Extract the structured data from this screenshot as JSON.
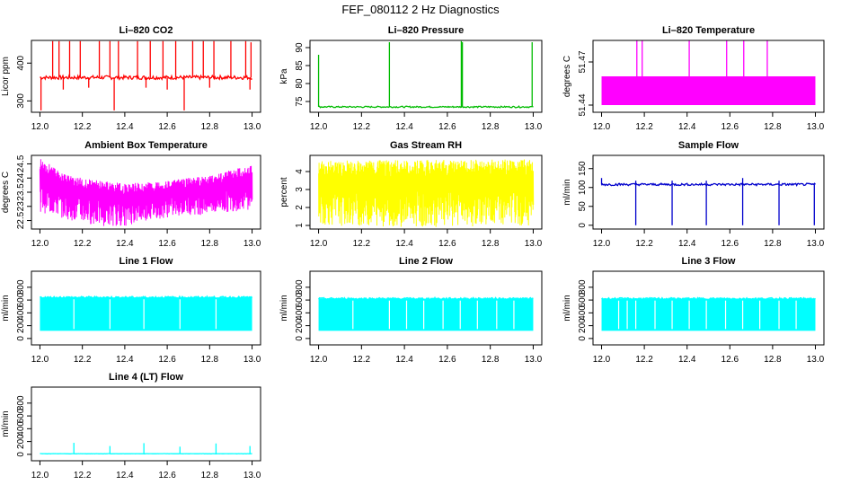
{
  "figure": {
    "title": "FEF_080112  2 Hz Diagnostics"
  },
  "chart_data": [
    {
      "type": "line",
      "title": "Li–820 CO2",
      "ylabel": "Licor ppm",
      "color": "#ff0000",
      "xlim": [
        12.0,
        13.0
      ],
      "xticks": [
        12.0,
        12.2,
        12.4,
        12.6,
        12.8,
        13.0
      ],
      "xtick_labels": [
        "12.0",
        "12.2",
        "12.4",
        "12.6",
        "12.8",
        "13.0"
      ],
      "ylim": [
        270,
        460
      ],
      "yticks": [
        300,
        400
      ],
      "ytick_labels": [
        "300",
        "400"
      ],
      "baseline": 362,
      "noise": 5,
      "spikes_up": [
        {
          "x": 12.06,
          "y": 458
        },
        {
          "x": 12.09,
          "y": 458
        },
        {
          "x": 12.14,
          "y": 458
        },
        {
          "x": 12.19,
          "y": 458
        },
        {
          "x": 12.28,
          "y": 458
        },
        {
          "x": 12.33,
          "y": 458
        },
        {
          "x": 12.37,
          "y": 458
        },
        {
          "x": 12.46,
          "y": 458
        },
        {
          "x": 12.52,
          "y": 458
        },
        {
          "x": 12.58,
          "y": 458
        },
        {
          "x": 12.64,
          "y": 458
        },
        {
          "x": 12.72,
          "y": 458
        },
        {
          "x": 12.77,
          "y": 458
        },
        {
          "x": 12.82,
          "y": 458
        },
        {
          "x": 12.9,
          "y": 458
        },
        {
          "x": 12.97,
          "y": 458
        },
        {
          "x": 12.995,
          "y": 455
        }
      ],
      "spikes_down": [
        {
          "x": 12.005,
          "y": 275
        },
        {
          "x": 12.35,
          "y": 275
        },
        {
          "x": 12.68,
          "y": 275
        },
        {
          "x": 12.11,
          "y": 330
        },
        {
          "x": 12.23,
          "y": 335
        },
        {
          "x": 12.5,
          "y": 335
        },
        {
          "x": 12.6,
          "y": 330
        },
        {
          "x": 12.8,
          "y": 335
        },
        {
          "x": 12.99,
          "y": 330
        }
      ]
    },
    {
      "type": "line",
      "title": "Li–820 Pressure",
      "ylabel": "kPa",
      "color": "#00bb00",
      "xlim": [
        12.0,
        13.0
      ],
      "xticks": [
        12.0,
        12.2,
        12.4,
        12.6,
        12.8,
        13.0
      ],
      "xtick_labels": [
        "12.0",
        "12.2",
        "12.4",
        "12.6",
        "12.8",
        "13.0"
      ],
      "ylim": [
        72,
        92
      ],
      "yticks": [
        75,
        80,
        85,
        90
      ],
      "ytick_labels": [
        "75",
        "80",
        "85",
        "90"
      ],
      "baseline": 73.5,
      "noise": 0.2,
      "spikes_up": [
        {
          "x": 12.0,
          "y": 88
        },
        {
          "x": 12.33,
          "y": 91.5
        },
        {
          "x": 12.665,
          "y": 91.8
        },
        {
          "x": 12.67,
          "y": 91.5
        },
        {
          "x": 12.995,
          "y": 91.5
        }
      ],
      "spikes_down": []
    },
    {
      "type": "line",
      "title": "Li–820 Temperature",
      "ylabel": "degrees C",
      "color": "#ff00ff",
      "xlim": [
        12.0,
        13.0
      ],
      "xticks": [
        12.0,
        12.2,
        12.4,
        12.6,
        12.8,
        13.0
      ],
      "xtick_labels": [
        "12.0",
        "12.2",
        "12.4",
        "12.6",
        "12.8",
        "13.0"
      ],
      "ylim": [
        51.435,
        51.485
      ],
      "yticks": [
        51.44,
        51.47
      ],
      "ytick_labels": [
        "51.44",
        "51.47"
      ],
      "band": [
        51.44,
        51.46
      ],
      "spikes_up": [
        {
          "x": 12.165,
          "y": 51.485
        },
        {
          "x": 12.19,
          "y": 51.485
        },
        {
          "x": 12.41,
          "y": 51.485
        },
        {
          "x": 12.585,
          "y": 51.485
        },
        {
          "x": 12.665,
          "y": 51.485
        },
        {
          "x": 12.775,
          "y": 51.485
        }
      ],
      "spikes_down": []
    },
    {
      "type": "line",
      "title": "Ambient Box Temperature",
      "ylabel": "degrees C",
      "color": "#ff00ff",
      "xlim": [
        12.0,
        13.0
      ],
      "xticks": [
        12.0,
        12.2,
        12.4,
        12.6,
        12.8,
        13.0
      ],
      "xtick_labels": [
        "12.0",
        "12.2",
        "12.4",
        "12.6",
        "12.8",
        "13.0"
      ],
      "ylim": [
        22.2,
        24.8
      ],
      "yticks": [
        22.5,
        23.0,
        23.5,
        24.0,
        24.5
      ],
      "ytick_labels": [
        "22.5",
        "23",
        "23.5",
        "24",
        "24.5"
      ],
      "envelope_top": [
        [
          12.0,
          24.75
        ],
        [
          12.1,
          24.2
        ],
        [
          12.2,
          24.0
        ],
        [
          12.3,
          23.9
        ],
        [
          12.4,
          23.8
        ],
        [
          12.5,
          23.85
        ],
        [
          12.6,
          23.9
        ],
        [
          12.7,
          24.0
        ],
        [
          12.8,
          24.1
        ],
        [
          12.9,
          24.3
        ],
        [
          13.0,
          24.45
        ]
      ],
      "envelope_bottom": [
        [
          12.0,
          22.8
        ],
        [
          12.1,
          22.6
        ],
        [
          12.2,
          22.4
        ],
        [
          12.3,
          22.3
        ],
        [
          12.4,
          22.3
        ],
        [
          12.5,
          22.5
        ],
        [
          12.6,
          22.6
        ],
        [
          12.7,
          22.7
        ],
        [
          12.8,
          22.7
        ],
        [
          12.9,
          22.8
        ],
        [
          13.0,
          22.9
        ]
      ]
    },
    {
      "type": "line",
      "title": "Gas Stream RH",
      "ylabel": "percent",
      "color": "#ffff00",
      "xlim": [
        12.0,
        13.0
      ],
      "xticks": [
        12.0,
        12.2,
        12.4,
        12.6,
        12.8,
        13.0
      ],
      "xtick_labels": [
        "12.0",
        "12.2",
        "12.4",
        "12.6",
        "12.8",
        "13.0"
      ],
      "ylim": [
        0.8,
        4.9
      ],
      "yticks": [
        1,
        2,
        3,
        4
      ],
      "ytick_labels": [
        "1",
        "2",
        "3",
        "4"
      ],
      "envelope_top": [
        [
          12.0,
          4.6
        ],
        [
          12.5,
          4.65
        ],
        [
          13.0,
          4.7
        ]
      ],
      "envelope_bottom": [
        [
          12.0,
          1.0
        ],
        [
          12.5,
          0.9
        ],
        [
          13.0,
          1.0
        ]
      ]
    },
    {
      "type": "line",
      "title": "Sample Flow",
      "ylabel": "ml/min",
      "color": "#0000cc",
      "xlim": [
        12.0,
        13.0
      ],
      "xticks": [
        12.0,
        12.2,
        12.4,
        12.6,
        12.8,
        13.0
      ],
      "xtick_labels": [
        "12.0",
        "12.2",
        "12.4",
        "12.6",
        "12.8",
        "13.0"
      ],
      "ylim": [
        -10,
        185
      ],
      "yticks": [
        0,
        50,
        100,
        150
      ],
      "ytick_labels": [
        "0",
        "50",
        "100",
        "150"
      ],
      "baseline": 108,
      "noise": 3,
      "spikes_up": [
        {
          "x": 12.0,
          "y": 125
        },
        {
          "x": 12.16,
          "y": 118
        },
        {
          "x": 12.33,
          "y": 118
        },
        {
          "x": 12.49,
          "y": 118
        },
        {
          "x": 12.66,
          "y": 125
        },
        {
          "x": 12.83,
          "y": 118
        }
      ],
      "spikes_down": [
        {
          "x": 12.16,
          "y": 0
        },
        {
          "x": 12.33,
          "y": 0
        },
        {
          "x": 12.49,
          "y": 0
        },
        {
          "x": 12.66,
          "y": 0
        },
        {
          "x": 12.83,
          "y": 0
        },
        {
          "x": 12.995,
          "y": 0
        }
      ]
    },
    {
      "type": "line",
      "title": "Line 1 Flow",
      "ylabel": "ml/min",
      "color": "#00ffff",
      "xlim": [
        12.0,
        13.0
      ],
      "xticks": [
        12.0,
        12.2,
        12.4,
        12.6,
        12.8,
        13.0
      ],
      "xtick_labels": [
        "12.0",
        "12.2",
        "12.4",
        "12.6",
        "12.8",
        "13.0"
      ],
      "ylim": [
        -100,
        1050
      ],
      "yticks": [
        0,
        200,
        400,
        600,
        800
      ],
      "ytick_labels": [
        "0",
        "200",
        "400",
        "600",
        "800"
      ],
      "band": [
        120,
        640
      ],
      "gaps": [
        12.16,
        12.33,
        12.49,
        12.66,
        12.83
      ]
    },
    {
      "type": "line",
      "title": "Line 2 Flow",
      "ylabel": "ml/min",
      "color": "#00ffff",
      "xlim": [
        12.0,
        13.0
      ],
      "xticks": [
        12.0,
        12.2,
        12.4,
        12.6,
        12.8,
        13.0
      ],
      "xtick_labels": [
        "12.0",
        "12.2",
        "12.4",
        "12.6",
        "12.8",
        "13.0"
      ],
      "ylim": [
        -100,
        1050
      ],
      "yticks": [
        0,
        200,
        400,
        600,
        800
      ],
      "ytick_labels": [
        "0",
        "200",
        "400",
        "600",
        "800"
      ],
      "band": [
        120,
        620
      ],
      "gaps": [
        12.16,
        12.33,
        12.41,
        12.49,
        12.58,
        12.66,
        12.74,
        12.83,
        12.91
      ]
    },
    {
      "type": "line",
      "title": "Line 3 Flow",
      "ylabel": "ml/min",
      "color": "#00ffff",
      "xlim": [
        12.0,
        13.0
      ],
      "xticks": [
        12.0,
        12.2,
        12.4,
        12.6,
        12.8,
        13.0
      ],
      "xtick_labels": [
        "12.0",
        "12.2",
        "12.4",
        "12.6",
        "12.8",
        "13.0"
      ],
      "ylim": [
        -100,
        1050
      ],
      "yticks": [
        0,
        200,
        400,
        600,
        800
      ],
      "ytick_labels": [
        "0",
        "200",
        "400",
        "600",
        "800"
      ],
      "band": [
        120,
        620
      ],
      "gaps": [
        12.08,
        12.12,
        12.16,
        12.25,
        12.33,
        12.41,
        12.49,
        12.58,
        12.66,
        12.74,
        12.83,
        12.91
      ]
    },
    {
      "type": "line",
      "title": "Line 4 (LT) Flow",
      "ylabel": "ml/min",
      "color": "#00ffff",
      "xlim": [
        12.0,
        13.0
      ],
      "xticks": [
        12.0,
        12.2,
        12.4,
        12.6,
        12.8,
        13.0
      ],
      "xtick_labels": [
        "12.0",
        "12.2",
        "12.4",
        "12.6",
        "12.8",
        "13.0"
      ],
      "ylim": [
        -100,
        1050
      ],
      "yticks": [
        0,
        200,
        400,
        600,
        800
      ],
      "ytick_labels": [
        "0",
        "200",
        "400",
        "600",
        "800"
      ],
      "baseline": 10,
      "noise": 2,
      "spikes_up": [
        {
          "x": 12.16,
          "y": 180
        },
        {
          "x": 12.33,
          "y": 130
        },
        {
          "x": 12.49,
          "y": 175
        },
        {
          "x": 12.66,
          "y": 120
        },
        {
          "x": 12.83,
          "y": 170
        },
        {
          "x": 12.99,
          "y": 130
        }
      ],
      "spikes_down": []
    }
  ]
}
